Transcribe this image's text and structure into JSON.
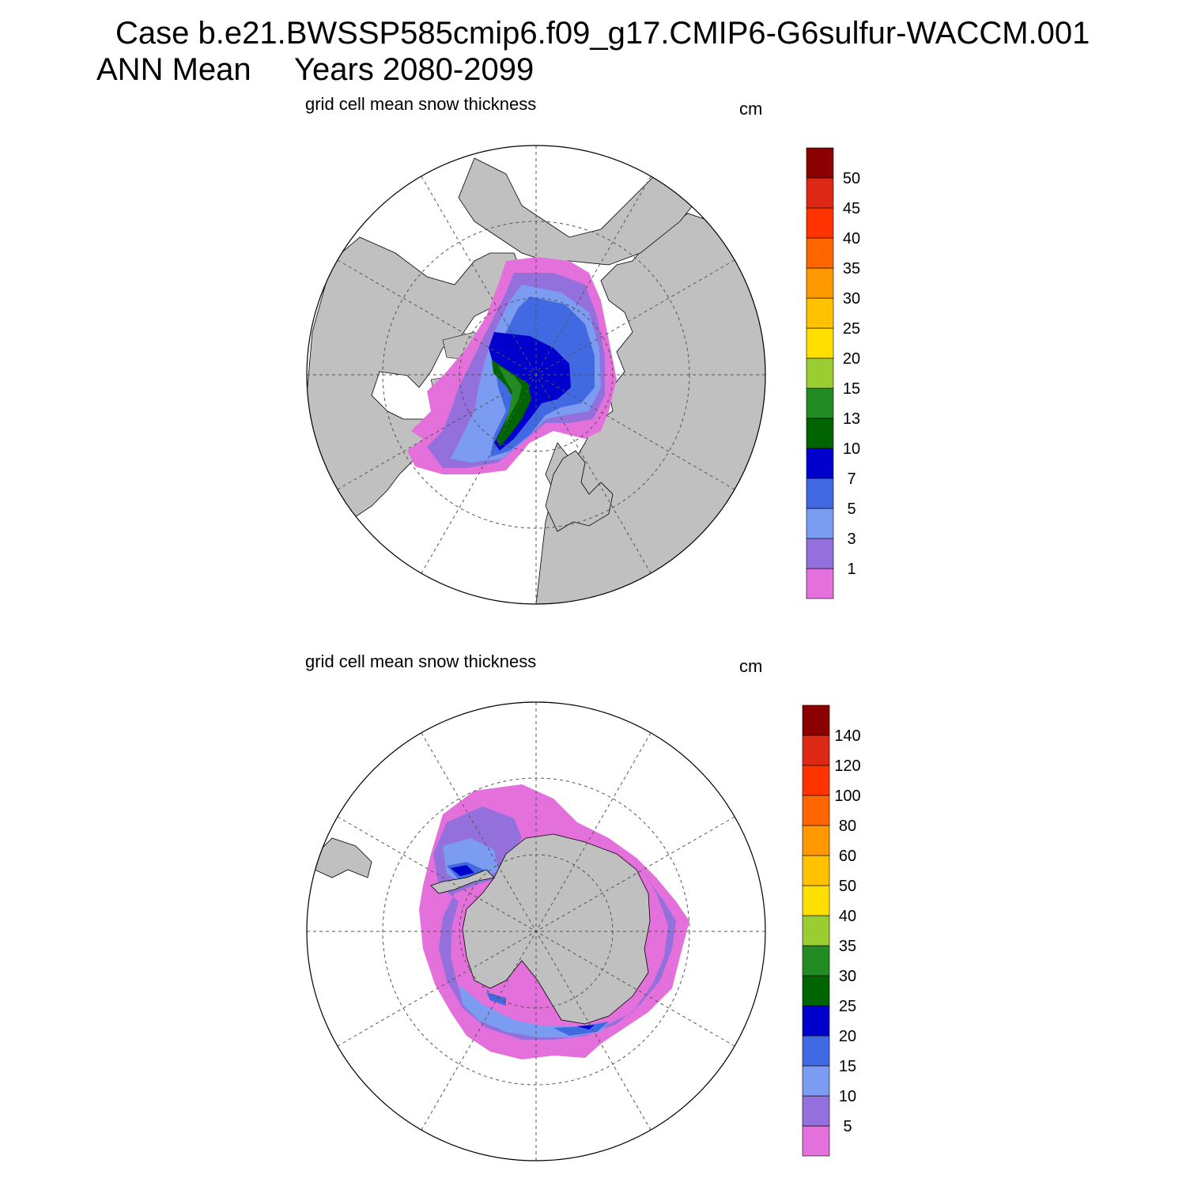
{
  "header": {
    "case_line": "Case b.e21.BWSSP585cmip6.f09_g17.CMIP6-G6sulfur-WACCM.001",
    "season": "ANN Mean",
    "years": "Years 2080-2099"
  },
  "panels": [
    {
      "id": "nh",
      "title": "grid cell mean snow thickness",
      "units": "cm",
      "colorbar": {
        "colors": [
          "#e370db",
          "#9370db",
          "#7b9cf0",
          "#4169e1",
          "#0000cd",
          "#006400",
          "#228b22",
          "#9acd32",
          "#ffdf00",
          "#ffc100",
          "#ff9900",
          "#ff6600",
          "#ff3300",
          "#dc2814",
          "#8b0000"
        ],
        "labels": [
          "1",
          "3",
          "5",
          "7",
          "10",
          "13",
          "15",
          "20",
          "25",
          "30",
          "35",
          "40",
          "45",
          "50"
        ]
      }
    },
    {
      "id": "sh",
      "title": "grid cell mean snow thickness",
      "units": "cm",
      "colorbar": {
        "colors": [
          "#e370db",
          "#9370db",
          "#7b9cf0",
          "#4169e1",
          "#0000cd",
          "#006400",
          "#228b22",
          "#9acd32",
          "#ffdf00",
          "#ffc100",
          "#ff9900",
          "#ff6600",
          "#ff3300",
          "#dc2814",
          "#8b0000"
        ],
        "labels": [
          "5",
          "10",
          "15",
          "20",
          "25",
          "30",
          "35",
          "40",
          "50",
          "60",
          "80",
          "100",
          "120",
          "140"
        ]
      }
    }
  ],
  "map_colors": {
    "land": "#c0c0c0",
    "ocean": "#ffffff",
    "graticule": "#555555"
  }
}
